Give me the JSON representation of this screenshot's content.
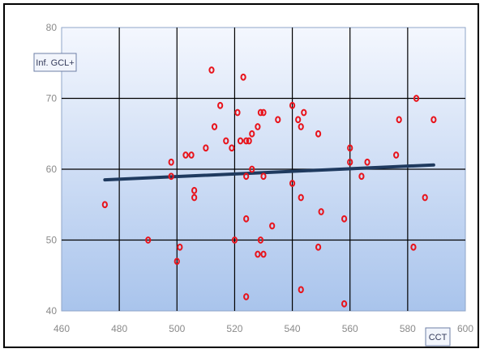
{
  "chart_data": {
    "type": "scatter",
    "title": "",
    "xlabel": "CCT",
    "ylabel": "Inf. GCL+",
    "xlim": [
      460,
      600
    ],
    "ylim": [
      40,
      80
    ],
    "x_ticks": [
      460,
      480,
      500,
      520,
      540,
      560,
      580,
      600
    ],
    "y_ticks": [
      40,
      50,
      60,
      70,
      80
    ],
    "x_tick_labels": [
      "460",
      "480",
      "500",
      "520",
      "540",
      "560",
      "580",
      "600"
    ],
    "y_tick_labels": [
      "40",
      "50",
      "60",
      "70",
      "80"
    ],
    "grid": true,
    "legend": "none",
    "colors": {
      "points": "#e8141c",
      "trendline": "#1f3a5f",
      "grid": "#000000",
      "plot_bg_top": "#f4f7fe",
      "plot_bg_bottom": "#a9c4ec"
    },
    "series": [
      {
        "points": [
          [
            475,
            55
          ],
          [
            490,
            50
          ],
          [
            498,
            61
          ],
          [
            498,
            59
          ],
          [
            500,
            47
          ],
          [
            501,
            49
          ],
          [
            503,
            62
          ],
          [
            505,
            62
          ],
          [
            506,
            57
          ],
          [
            506,
            56
          ],
          [
            510,
            63
          ],
          [
            512,
            74
          ],
          [
            513,
            66
          ],
          [
            515,
            69
          ],
          [
            517,
            64
          ],
          [
            519,
            63
          ],
          [
            520,
            50
          ],
          [
            521,
            68
          ],
          [
            522,
            64
          ],
          [
            523,
            73
          ],
          [
            524,
            64
          ],
          [
            524,
            59
          ],
          [
            524,
            53
          ],
          [
            524,
            42
          ],
          [
            525,
            64
          ],
          [
            526,
            65
          ],
          [
            526,
            60
          ],
          [
            528,
            66
          ],
          [
            528,
            48
          ],
          [
            529,
            68
          ],
          [
            529,
            50
          ],
          [
            530,
            68
          ],
          [
            530,
            59
          ],
          [
            530,
            48
          ],
          [
            533,
            52
          ],
          [
            535,
            67
          ],
          [
            540,
            69
          ],
          [
            540,
            58
          ],
          [
            542,
            67
          ],
          [
            543,
            66
          ],
          [
            543,
            56
          ],
          [
            543,
            43
          ],
          [
            544,
            68
          ],
          [
            549,
            65
          ],
          [
            549,
            49
          ],
          [
            550,
            54
          ],
          [
            558,
            53
          ],
          [
            558,
            41
          ],
          [
            560,
            63
          ],
          [
            560,
            61
          ],
          [
            564,
            59
          ],
          [
            566,
            61
          ],
          [
            576,
            62
          ],
          [
            577,
            67
          ],
          [
            582,
            49
          ],
          [
            583,
            70
          ],
          [
            586,
            56
          ],
          [
            589,
            67
          ]
        ]
      }
    ],
    "trendline": {
      "x": [
        475,
        589
      ],
      "y": [
        58.5,
        60.6
      ]
    }
  }
}
